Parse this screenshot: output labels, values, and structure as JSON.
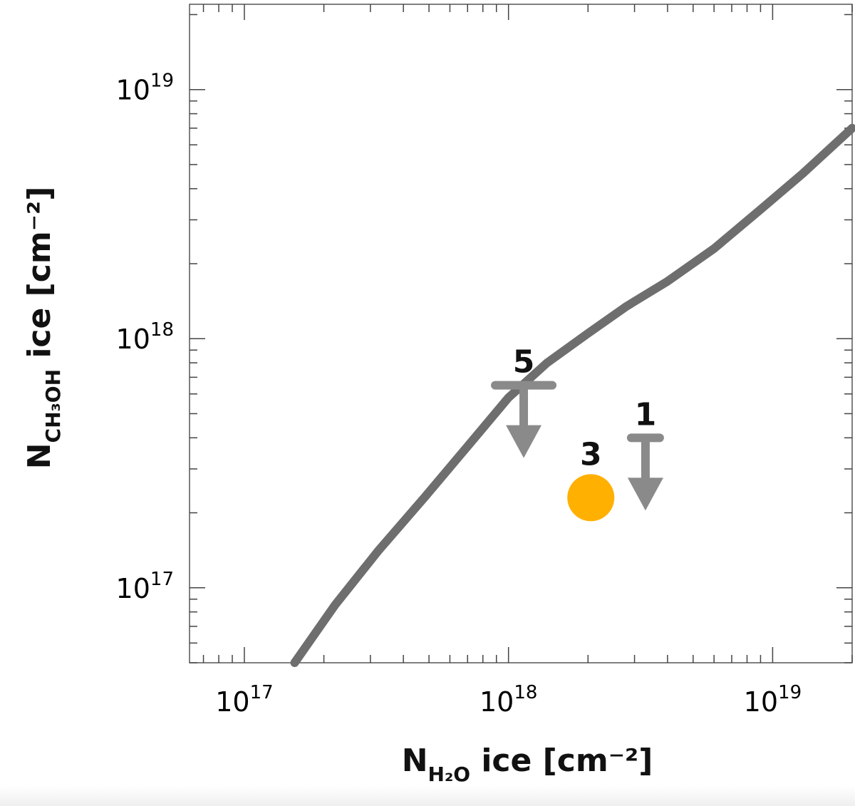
{
  "chart_data": {
    "type": "line",
    "xlabel": {
      "main": "N",
      "sub": "H₂O",
      "rest": " ice [cm⁻²]"
    },
    "ylabel": {
      "main": "N",
      "sub": "CH₃OH",
      "rest": " ice [cm⁻²]"
    },
    "x_scale": "log",
    "y_scale": "log",
    "xlim": [
      6.2e+16,
      2e+19
    ],
    "ylim": [
      5e+16,
      2.2e+19
    ],
    "x_ticks": [
      {
        "value": 1e+17,
        "base": "10",
        "exp": "17"
      },
      {
        "value": 1e+18,
        "base": "10",
        "exp": "18"
      },
      {
        "value": 1e+19,
        "base": "10",
        "exp": "19"
      }
    ],
    "y_ticks": [
      {
        "value": 1e+17,
        "base": "10",
        "exp": "17"
      },
      {
        "value": 1e+18,
        "base": "10",
        "exp": "18"
      },
      {
        "value": 1e+19,
        "base": "10",
        "exp": "19"
      }
    ],
    "series": [
      {
        "color": "#6e6e6e",
        "points": [
          [
            1.55e+17,
            5e+16
          ],
          [
            2.2e+17,
            8.5e+16
          ],
          [
            3.2e+17,
            1.4e+17
          ],
          [
            4.8e+17,
            2.3e+17
          ],
          [
            7e+17,
            3.7e+17
          ],
          [
            1e+18,
            5.8e+17
          ],
          [
            1.4e+18,
            8e+17
          ],
          [
            2e+18,
            1.05e+18
          ],
          [
            2.8e+18,
            1.35e+18
          ],
          [
            4e+18,
            1.7e+18
          ],
          [
            6e+18,
            2.3e+18
          ],
          [
            9e+18,
            3.3e+18
          ],
          [
            1.3e+19,
            4.6e+18
          ],
          [
            2e+19,
            7e+18
          ]
        ]
      }
    ],
    "points": [
      {
        "label": "5",
        "x": 1.1e+18,
        "y": 6.5e+17,
        "kind": "upper-limit",
        "color": "#8a8a8a"
      },
      {
        "label": "3",
        "x": 2.05e+18,
        "y": 2.3e+17,
        "kind": "detection",
        "color": "#FFB000"
      },
      {
        "label": "1",
        "x": 3.3e+18,
        "y": 4e+17,
        "kind": "upper-limit",
        "color": "#8a8a8a"
      }
    ],
    "grid": false,
    "legend": "none"
  }
}
